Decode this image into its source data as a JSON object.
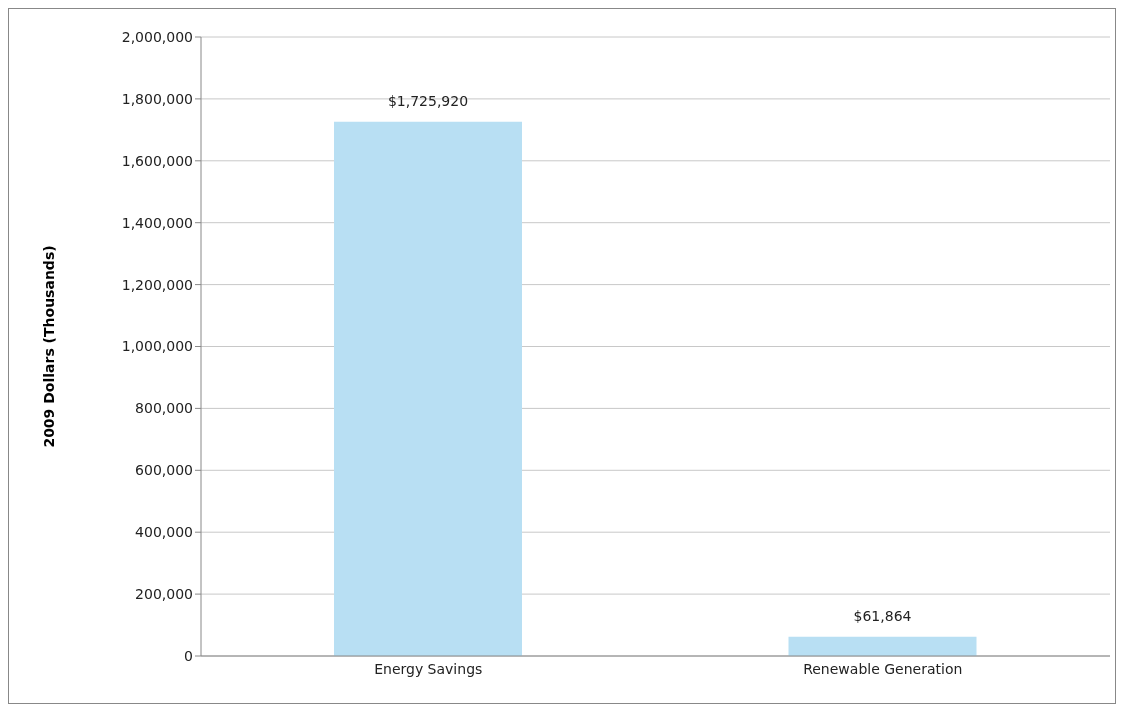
{
  "chart_data": {
    "type": "bar",
    "ylabel": "2009 Dollars (Thousands)",
    "categories": [
      "Energy Savings",
      "Renewable Generation"
    ],
    "values": [
      1725920,
      61864
    ],
    "value_labels": [
      "$1,725,920",
      "$61,864"
    ],
    "color": "#b8dff3",
    "ylim": [
      0,
      2000000
    ],
    "yticks": [
      {
        "value": 0,
        "label": "0"
      },
      {
        "value": 200000,
        "label": "200,000"
      },
      {
        "value": 400000,
        "label": "400,000"
      },
      {
        "value": 600000,
        "label": "600,000"
      },
      {
        "value": 800000,
        "label": "800,000"
      },
      {
        "value": 1000000,
        "label": "1,000,000"
      },
      {
        "value": 1200000,
        "label": "1,200,000"
      },
      {
        "value": 1400000,
        "label": "1,400,000"
      },
      {
        "value": 1600000,
        "label": "1,600,000"
      },
      {
        "value": 1800000,
        "label": "1,800,000"
      },
      {
        "value": 2000000,
        "label": "2,000,000"
      }
    ],
    "grid": "y",
    "legend": false
  }
}
